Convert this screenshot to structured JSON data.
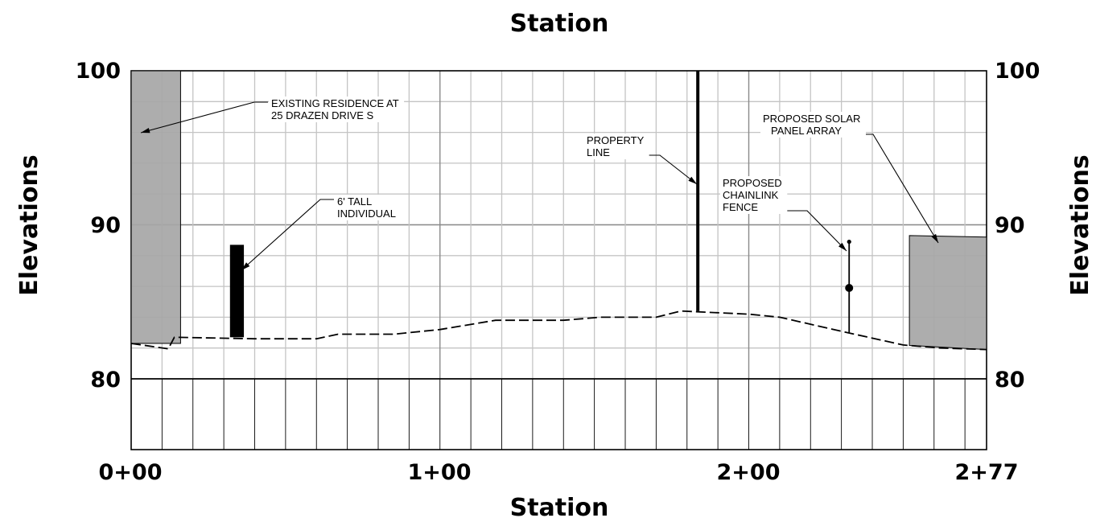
{
  "profile": {
    "title_top": "Station",
    "title_bottom": "Station",
    "ylabel_left": "Elevations",
    "ylabel_right": "Elevations",
    "y_ticks": [
      {
        "value": 100,
        "label": "100"
      },
      {
        "value": 90,
        "label": "90"
      },
      {
        "value": 80,
        "label": "80"
      }
    ],
    "x_ticks": [
      {
        "value": 0,
        "label": "0+00"
      },
      {
        "value": 100,
        "label": "1+00"
      },
      {
        "value": 200,
        "label": "2+00"
      },
      {
        "value": 277,
        "label": "2+77"
      }
    ],
    "station_range": [
      0,
      277
    ],
    "elevation_range": [
      75.5,
      100
    ],
    "ground_profile": [
      {
        "sta": 0,
        "elev": 82.3
      },
      {
        "sta": 12,
        "elev": 81.95
      },
      {
        "sta": 14,
        "elev": 82.7
      },
      {
        "sta": 40,
        "elev": 82.6
      },
      {
        "sta": 60,
        "elev": 82.6
      },
      {
        "sta": 67,
        "elev": 82.9
      },
      {
        "sta": 85,
        "elev": 82.9
      },
      {
        "sta": 100,
        "elev": 83.2
      },
      {
        "sta": 118,
        "elev": 83.8
      },
      {
        "sta": 140,
        "elev": 83.8
      },
      {
        "sta": 152,
        "elev": 84.0
      },
      {
        "sta": 170,
        "elev": 84.0
      },
      {
        "sta": 178,
        "elev": 84.4
      },
      {
        "sta": 200,
        "elev": 84.2
      },
      {
        "sta": 210,
        "elev": 84.0
      },
      {
        "sta": 232,
        "elev": 83.0
      },
      {
        "sta": 250,
        "elev": 82.2
      },
      {
        "sta": 262,
        "elev": 82.0
      },
      {
        "sta": 277,
        "elev": 81.9
      }
    ],
    "features": {
      "residence": {
        "sta_start": 0,
        "sta_end": 16,
        "top_elev": 100,
        "color": "#a6a6a6"
      },
      "individual": {
        "sta_start": 32,
        "sta_end": 36.5,
        "base_elev": 82.7,
        "top_elev": 88.7,
        "color": "#000000"
      },
      "property_line": {
        "sta": 183.5,
        "base_elev": 84.4,
        "top_elev": 100
      },
      "fence": {
        "sta": 232.5,
        "base_elev": 83.0,
        "top_elev": 88.9,
        "node_elev": 85.9
      },
      "solar_array": {
        "sta_start": 252,
        "sta_end": 277,
        "top_elev_left": 89.3,
        "top_elev_right": 89.2,
        "color": "#a6a6a6"
      }
    },
    "annotations": {
      "residence": {
        "lines": [
          "EXISTING RESIDENCE AT",
          "25 DRAZEN DRIVE S"
        ]
      },
      "individual": {
        "lines": [
          "6' TALL",
          "INDIVIDUAL"
        ]
      },
      "property_line": {
        "lines": [
          "PROPERTY",
          "LINE"
        ]
      },
      "fence": {
        "lines": [
          "PROPOSED",
          "CHAINLINK",
          "FENCE"
        ]
      },
      "solar": {
        "lines": [
          "PROPOSED SOLAR",
          "PANEL ARRAY"
        ]
      }
    },
    "colors": {
      "grid": "#c4c4c4",
      "line": "#000000",
      "fill": "#a6a6a6"
    }
  }
}
